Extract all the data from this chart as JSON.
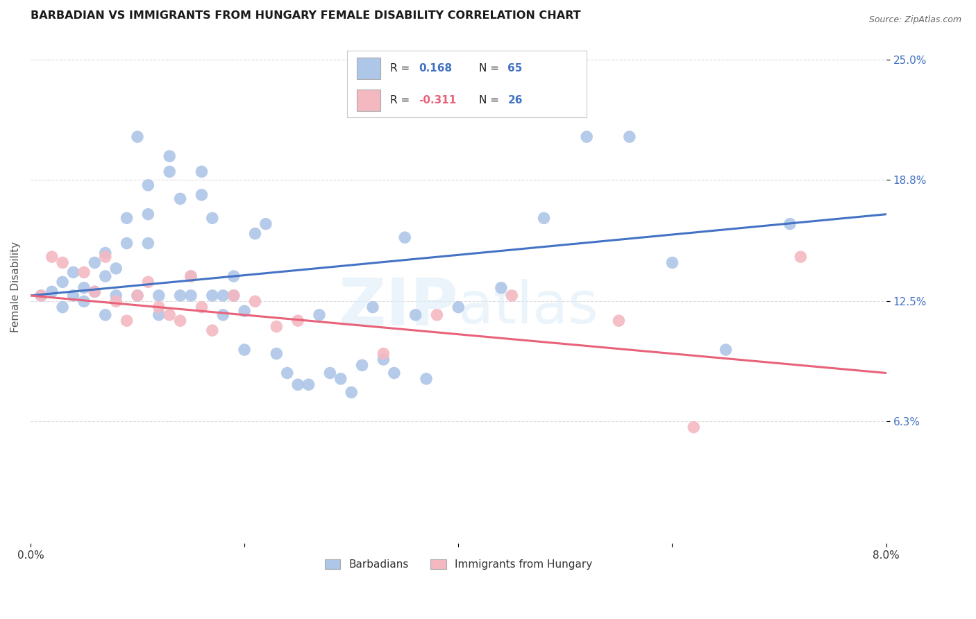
{
  "title": "BARBADIAN VS IMMIGRANTS FROM HUNGARY FEMALE DISABILITY CORRELATION CHART",
  "source": "Source: ZipAtlas.com",
  "ylabel": "Female Disability",
  "xlim": [
    0.0,
    0.08
  ],
  "ylim": [
    0.0,
    0.265
  ],
  "ytick_positions": [
    0.063,
    0.125,
    0.188,
    0.25
  ],
  "ytick_labels": [
    "6.3%",
    "12.5%",
    "18.8%",
    "25.0%"
  ],
  "xtick_positions": [
    0.0,
    0.02,
    0.04,
    0.06,
    0.08
  ],
  "xtick_labels": [
    "0.0%",
    "",
    "",
    "",
    "8.0%"
  ],
  "background_color": "#ffffff",
  "grid_color": "#dddddd",
  "barbadian_color": "#aec6e8",
  "hungary_color": "#f4b8c1",
  "barbadian_line_color": "#4472c4",
  "hungary_line_color": "#e8627a",
  "label_color": "#4472c4",
  "R_barbadian": 0.168,
  "N_barbadian": 65,
  "R_hungary": -0.311,
  "N_hungary": 26,
  "barb_x": [
    0.001,
    0.002,
    0.003,
    0.003,
    0.004,
    0.004,
    0.005,
    0.005,
    0.006,
    0.006,
    0.007,
    0.007,
    0.007,
    0.008,
    0.008,
    0.009,
    0.009,
    0.01,
    0.01,
    0.011,
    0.011,
    0.011,
    0.012,
    0.012,
    0.013,
    0.013,
    0.014,
    0.014,
    0.015,
    0.015,
    0.016,
    0.016,
    0.017,
    0.017,
    0.018,
    0.018,
    0.019,
    0.019,
    0.02,
    0.02,
    0.021,
    0.022,
    0.023,
    0.024,
    0.025,
    0.026,
    0.027,
    0.028,
    0.029,
    0.03,
    0.031,
    0.032,
    0.033,
    0.034,
    0.035,
    0.036,
    0.037,
    0.04,
    0.044,
    0.048,
    0.052,
    0.056,
    0.06,
    0.065,
    0.071
  ],
  "barb_y": [
    0.128,
    0.13,
    0.135,
    0.122,
    0.14,
    0.128,
    0.132,
    0.125,
    0.145,
    0.13,
    0.15,
    0.138,
    0.118,
    0.142,
    0.128,
    0.168,
    0.155,
    0.21,
    0.128,
    0.185,
    0.17,
    0.155,
    0.128,
    0.118,
    0.192,
    0.2,
    0.178,
    0.128,
    0.128,
    0.138,
    0.192,
    0.18,
    0.168,
    0.128,
    0.128,
    0.118,
    0.138,
    0.128,
    0.12,
    0.1,
    0.16,
    0.165,
    0.098,
    0.088,
    0.082,
    0.082,
    0.118,
    0.088,
    0.085,
    0.078,
    0.092,
    0.122,
    0.095,
    0.088,
    0.158,
    0.118,
    0.085,
    0.122,
    0.132,
    0.168,
    0.21,
    0.21,
    0.145,
    0.1,
    0.165
  ],
  "hung_x": [
    0.001,
    0.002,
    0.003,
    0.005,
    0.006,
    0.007,
    0.008,
    0.009,
    0.01,
    0.011,
    0.012,
    0.013,
    0.014,
    0.015,
    0.016,
    0.017,
    0.019,
    0.021,
    0.023,
    0.025,
    0.033,
    0.038,
    0.045,
    0.055,
    0.062,
    0.072
  ],
  "hung_y": [
    0.128,
    0.148,
    0.145,
    0.14,
    0.13,
    0.148,
    0.125,
    0.115,
    0.128,
    0.135,
    0.122,
    0.118,
    0.115,
    0.138,
    0.122,
    0.11,
    0.128,
    0.125,
    0.112,
    0.115,
    0.098,
    0.118,
    0.128,
    0.115,
    0.06,
    0.148
  ]
}
